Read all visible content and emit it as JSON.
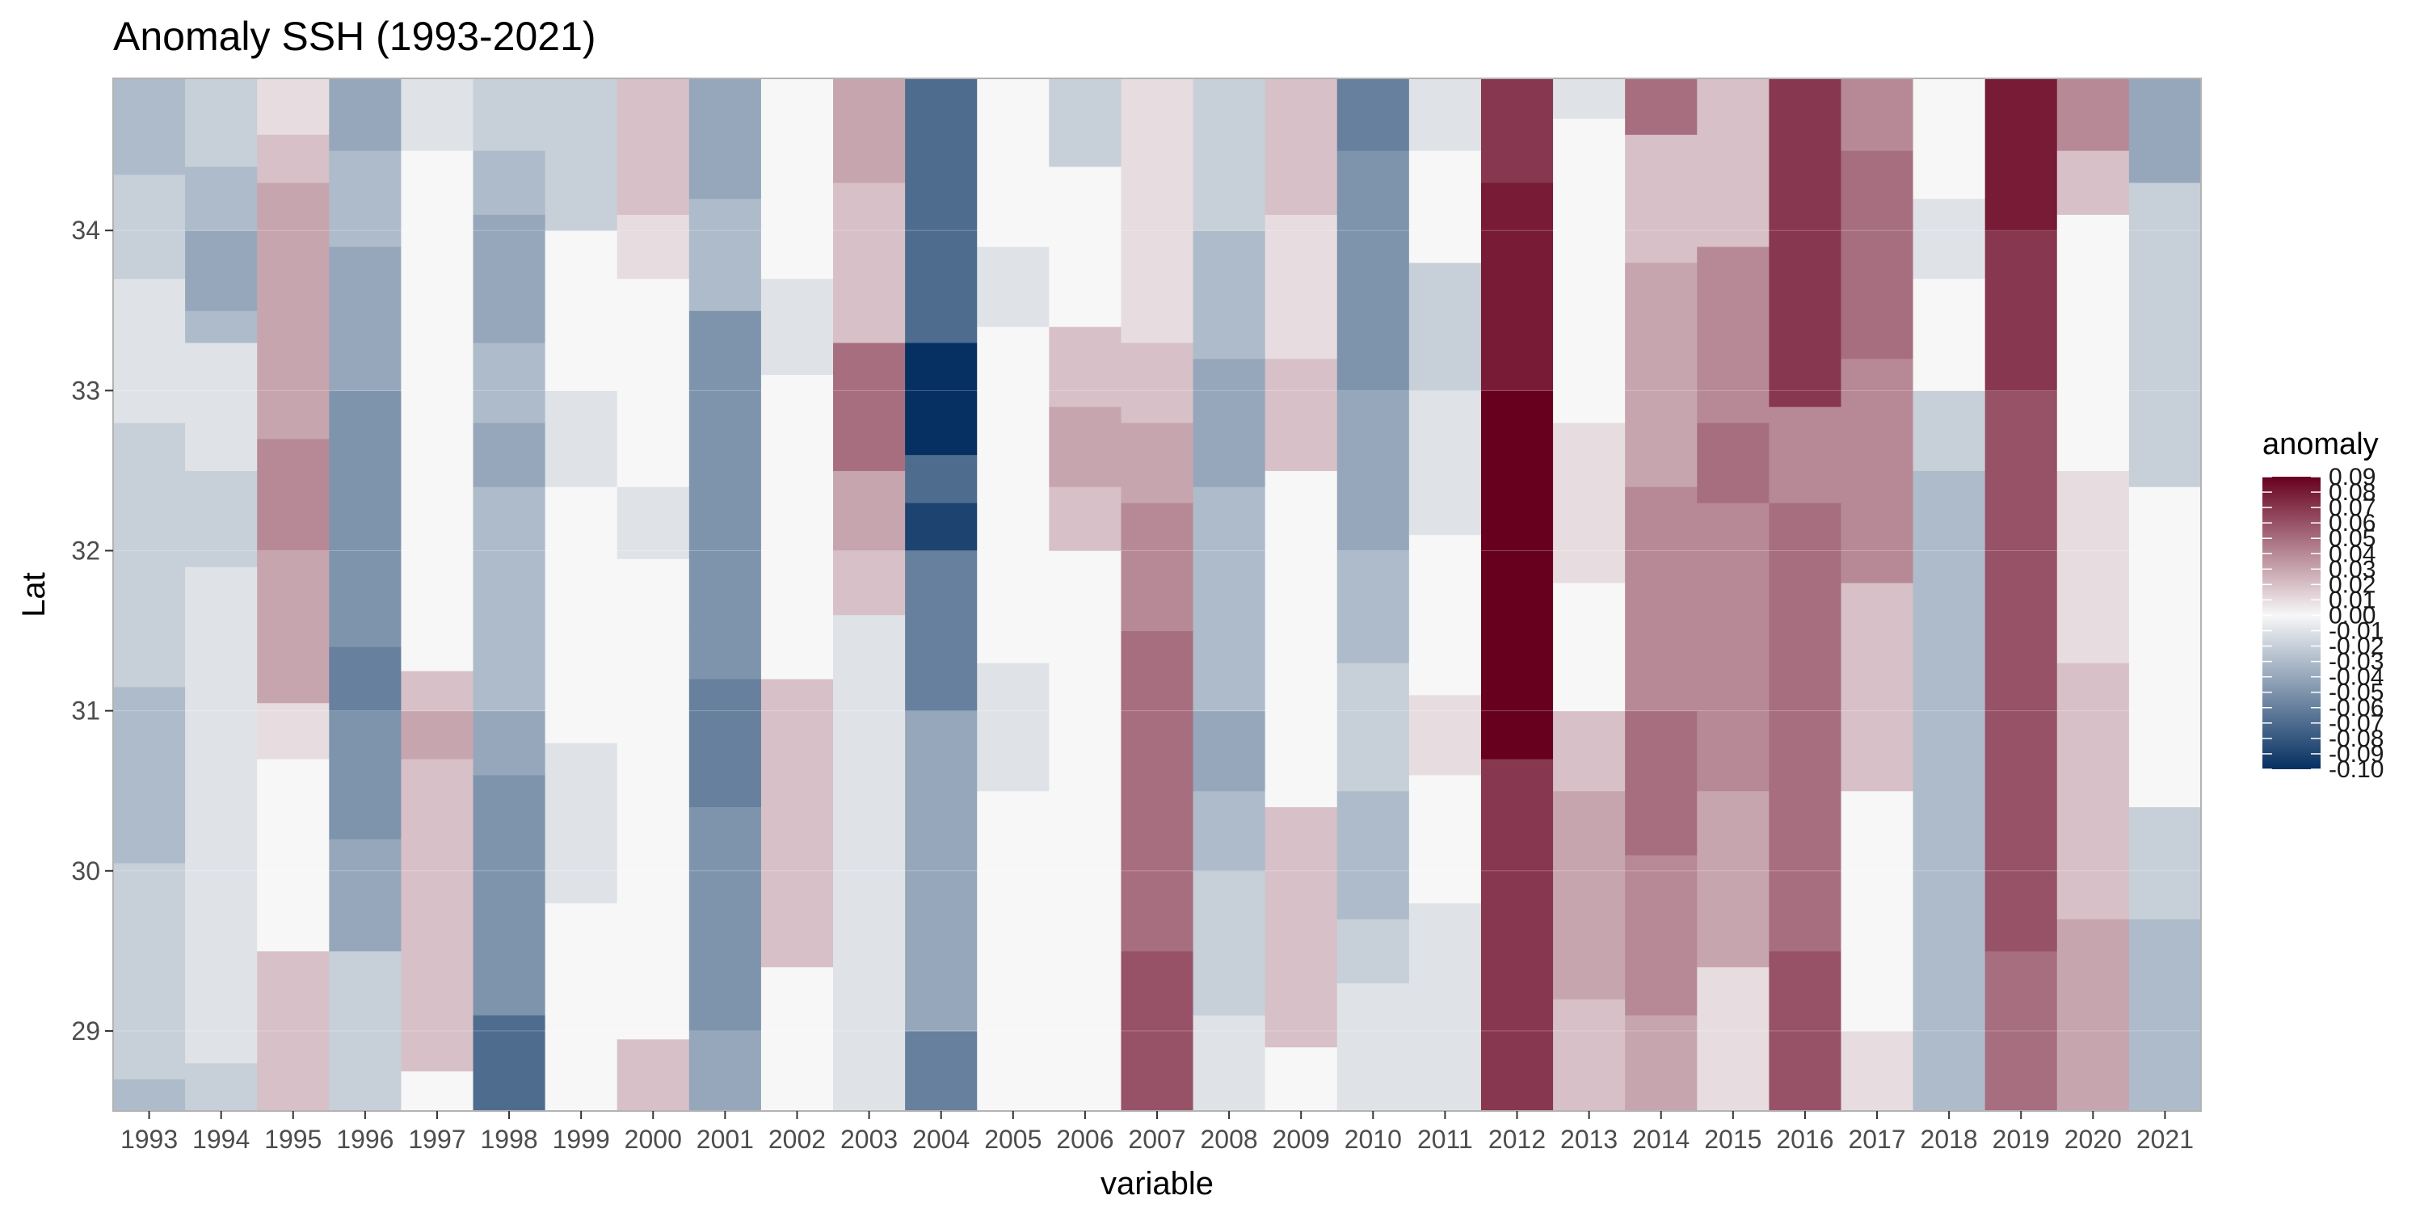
{
  "chart_data": {
    "type": "heatmap",
    "title": "Anomaly SSH (1993-2021)",
    "xlabel": "variable",
    "ylabel": "Lat",
    "ylim": [
      28.5,
      34.95
    ],
    "x_ticks": [
      "1993",
      "1994",
      "1995",
      "1996",
      "1997",
      "1998",
      "1999",
      "2000",
      "2001",
      "2002",
      "2003",
      "2004",
      "2005",
      "2006",
      "2007",
      "2008",
      "2009",
      "2010",
      "2011",
      "2012",
      "2013",
      "2014",
      "2015",
      "2016",
      "2017",
      "2018",
      "2019",
      "2020",
      "2021"
    ],
    "y_ticks": [
      29,
      30,
      31,
      32,
      33,
      34
    ],
    "y_tick_labels": [
      "29",
      "30",
      "31",
      "32",
      "33",
      "34"
    ],
    "grid": true,
    "legend_position": "right",
    "legend": {
      "title": "anomaly",
      "labels": [
        "0.09",
        "0.08",
        "0.07",
        "0.06",
        "0.05",
        "0.04",
        "0.03",
        "0.02",
        "0.01",
        "0.00",
        "-0.01",
        "-0.02",
        "-0.03",
        "-0.04",
        "-0.05",
        "-0.06",
        "-0.07",
        "-0.08",
        "-0.09",
        "-0.10"
      ]
    },
    "color_scale": {
      "low": "#053061",
      "mid": "#f7f7f7",
      "high": "#67001f",
      "min": -0.1,
      "max": 0.09
    },
    "cells": {
      "1993": [
        [
          28.5,
          28.7,
          -0.03
        ],
        [
          28.7,
          30.05,
          -0.02
        ],
        [
          30.05,
          31.15,
          -0.03
        ],
        [
          31.15,
          32.8,
          -0.02
        ],
        [
          32.8,
          33.7,
          -0.01
        ],
        [
          33.7,
          34.35,
          -0.02
        ],
        [
          34.35,
          34.95,
          -0.03
        ]
      ],
      "1994": [
        [
          28.5,
          28.8,
          -0.02
        ],
        [
          28.8,
          31.9,
          -0.01
        ],
        [
          31.9,
          32.5,
          -0.02
        ],
        [
          32.5,
          33.3,
          -0.01
        ],
        [
          33.3,
          33.5,
          -0.03
        ],
        [
          33.5,
          34.0,
          -0.04
        ],
        [
          34.0,
          34.4,
          -0.03
        ],
        [
          34.4,
          34.95,
          -0.02
        ]
      ],
      "1995": [
        [
          28.5,
          29.5,
          0.02
        ],
        [
          29.5,
          30.7,
          0.0
        ],
        [
          30.7,
          31.05,
          0.01
        ],
        [
          31.05,
          32.0,
          0.03
        ],
        [
          32.0,
          32.7,
          0.04
        ],
        [
          32.7,
          34.3,
          0.03
        ],
        [
          34.3,
          34.6,
          0.02
        ],
        [
          34.6,
          34.95,
          0.01
        ]
      ],
      "1996": [
        [
          28.5,
          29.5,
          -0.02
        ],
        [
          29.5,
          30.2,
          -0.04
        ],
        [
          30.2,
          31.0,
          -0.05
        ],
        [
          31.0,
          31.4,
          -0.06
        ],
        [
          31.4,
          33.0,
          -0.05
        ],
        [
          33.0,
          33.9,
          -0.04
        ],
        [
          33.9,
          34.5,
          -0.03
        ],
        [
          34.5,
          34.95,
          -0.04
        ]
      ],
      "1997": [
        [
          28.5,
          28.75,
          0.0
        ],
        [
          28.75,
          30.7,
          0.02
        ],
        [
          30.7,
          31.0,
          0.03
        ],
        [
          31.0,
          31.25,
          0.02
        ],
        [
          31.25,
          34.5,
          0.0
        ],
        [
          34.5,
          34.95,
          -0.01
        ]
      ],
      "1998": [
        [
          28.5,
          29.1,
          -0.07
        ],
        [
          29.1,
          30.6,
          -0.05
        ],
        [
          30.6,
          31.0,
          -0.04
        ],
        [
          31.0,
          32.4,
          -0.03
        ],
        [
          32.4,
          32.8,
          -0.04
        ],
        [
          32.8,
          33.3,
          -0.03
        ],
        [
          33.3,
          34.1,
          -0.04
        ],
        [
          34.1,
          34.5,
          -0.03
        ],
        [
          34.5,
          34.95,
          -0.02
        ]
      ],
      "1999": [
        [
          28.5,
          29.8,
          0.0
        ],
        [
          29.8,
          30.8,
          -0.01
        ],
        [
          30.8,
          32.4,
          0.0
        ],
        [
          32.4,
          33.0,
          -0.01
        ],
        [
          33.0,
          34.0,
          0.0
        ],
        [
          34.0,
          34.95,
          -0.02
        ]
      ],
      "2000": [
        [
          28.5,
          28.95,
          0.02
        ],
        [
          28.95,
          31.95,
          0.0
        ],
        [
          31.95,
          32.4,
          -0.01
        ],
        [
          32.4,
          33.7,
          0.0
        ],
        [
          33.7,
          34.1,
          0.01
        ],
        [
          34.1,
          34.95,
          0.02
        ]
      ],
      "2001": [
        [
          28.5,
          29.0,
          -0.04
        ],
        [
          29.0,
          30.4,
          -0.05
        ],
        [
          30.4,
          31.2,
          -0.06
        ],
        [
          31.2,
          31.5,
          -0.05
        ],
        [
          31.5,
          33.5,
          -0.05
        ],
        [
          33.5,
          34.2,
          -0.03
        ],
        [
          34.2,
          34.95,
          -0.04
        ]
      ],
      "2002": [
        [
          28.5,
          29.4,
          0.0
        ],
        [
          29.4,
          31.2,
          0.02
        ],
        [
          31.2,
          33.1,
          0.0
        ],
        [
          33.1,
          33.7,
          -0.01
        ],
        [
          33.7,
          34.95,
          0.0
        ]
      ],
      "2003": [
        [
          28.5,
          31.6,
          -0.01
        ],
        [
          31.6,
          32.0,
          0.02
        ],
        [
          32.0,
          32.5,
          0.03
        ],
        [
          32.5,
          33.3,
          0.05
        ],
        [
          33.3,
          34.3,
          0.02
        ],
        [
          34.3,
          34.95,
          0.03
        ]
      ],
      "2004": [
        [
          28.5,
          29.0,
          -0.06
        ],
        [
          29.0,
          31.0,
          -0.04
        ],
        [
          31.0,
          32.0,
          -0.06
        ],
        [
          32.0,
          32.3,
          -0.09
        ],
        [
          32.3,
          32.6,
          -0.07
        ],
        [
          32.6,
          33.3,
          -0.1
        ],
        [
          33.3,
          34.95,
          -0.07
        ]
      ],
      "2005": [
        [
          28.5,
          30.5,
          0.0
        ],
        [
          30.5,
          31.3,
          -0.01
        ],
        [
          31.3,
          33.4,
          0.0
        ],
        [
          33.4,
          33.9,
          -0.01
        ],
        [
          33.9,
          34.95,
          0.0
        ]
      ],
      "2006": [
        [
          28.5,
          32.0,
          0.0
        ],
        [
          32.0,
          32.4,
          0.02
        ],
        [
          32.4,
          32.9,
          0.03
        ],
        [
          32.9,
          33.4,
          0.02
        ],
        [
          33.4,
          34.4,
          0.0
        ],
        [
          34.4,
          34.95,
          -0.02
        ]
      ],
      "2007": [
        [
          28.5,
          29.5,
          0.06
        ],
        [
          29.5,
          31.5,
          0.05
        ],
        [
          31.5,
          32.3,
          0.04
        ],
        [
          32.3,
          32.8,
          0.03
        ],
        [
          32.8,
          33.3,
          0.02
        ],
        [
          33.3,
          34.95,
          0.01
        ]
      ],
      "2008": [
        [
          28.5,
          29.1,
          -0.01
        ],
        [
          29.1,
          30.0,
          -0.02
        ],
        [
          30.0,
          30.5,
          -0.03
        ],
        [
          30.5,
          31.0,
          -0.04
        ],
        [
          31.0,
          32.4,
          -0.03
        ],
        [
          32.4,
          33.2,
          -0.04
        ],
        [
          33.2,
          34.0,
          -0.03
        ],
        [
          34.0,
          34.95,
          -0.02
        ]
      ],
      "2009": [
        [
          28.5,
          28.9,
          0.0
        ],
        [
          28.9,
          30.4,
          0.02
        ],
        [
          30.4,
          32.5,
          0.0
        ],
        [
          32.5,
          33.2,
          0.02
        ],
        [
          33.2,
          34.1,
          0.01
        ],
        [
          34.1,
          34.95,
          0.02
        ]
      ],
      "2010": [
        [
          28.5,
          29.3,
          -0.01
        ],
        [
          29.3,
          29.7,
          -0.02
        ],
        [
          29.7,
          30.5,
          -0.03
        ],
        [
          30.5,
          31.3,
          -0.02
        ],
        [
          31.3,
          32.0,
          -0.03
        ],
        [
          32.0,
          33.0,
          -0.04
        ],
        [
          33.0,
          33.5,
          -0.05
        ],
        [
          33.5,
          34.5,
          -0.05
        ],
        [
          34.5,
          34.95,
          -0.06
        ]
      ],
      "2011": [
        [
          28.5,
          29.8,
          -0.01
        ],
        [
          29.8,
          30.6,
          0.0
        ],
        [
          30.6,
          31.1,
          0.01
        ],
        [
          31.1,
          32.1,
          0.0
        ],
        [
          32.1,
          33.0,
          -0.01
        ],
        [
          33.0,
          33.8,
          -0.02
        ],
        [
          33.8,
          34.5,
          0.0
        ],
        [
          34.5,
          34.95,
          -0.01
        ]
      ],
      "2012": [
        [
          28.5,
          30.7,
          0.07
        ],
        [
          30.7,
          33.0,
          0.09
        ],
        [
          33.0,
          34.3,
          0.08
        ],
        [
          34.3,
          34.95,
          0.07
        ]
      ],
      "2013": [
        [
          28.5,
          29.2,
          0.02
        ],
        [
          29.2,
          30.5,
          0.03
        ],
        [
          30.5,
          31.0,
          0.02
        ],
        [
          31.0,
          31.8,
          0.0
        ],
        [
          31.8,
          32.8,
          0.01
        ],
        [
          32.8,
          34.7,
          0.0
        ],
        [
          34.7,
          34.95,
          -0.01
        ]
      ],
      "2014": [
        [
          28.5,
          29.1,
          0.03
        ],
        [
          29.1,
          30.1,
          0.04
        ],
        [
          30.1,
          31.0,
          0.05
        ],
        [
          31.0,
          32.4,
          0.04
        ],
        [
          32.4,
          33.8,
          0.03
        ],
        [
          33.8,
          34.6,
          0.02
        ],
        [
          34.6,
          34.95,
          0.05
        ]
      ],
      "2015": [
        [
          28.5,
          29.4,
          0.01
        ],
        [
          29.4,
          30.5,
          0.03
        ],
        [
          30.5,
          32.3,
          0.04
        ],
        [
          32.3,
          32.8,
          0.05
        ],
        [
          32.8,
          33.9,
          0.04
        ],
        [
          33.9,
          34.95,
          0.02
        ]
      ],
      "2016": [
        [
          28.5,
          29.5,
          0.06
        ],
        [
          29.5,
          32.3,
          0.05
        ],
        [
          32.3,
          32.9,
          0.04
        ],
        [
          32.9,
          34.95,
          0.07
        ]
      ],
      "2017": [
        [
          28.5,
          29.0,
          0.01
        ],
        [
          29.0,
          30.5,
          0.0
        ],
        [
          30.5,
          31.8,
          0.02
        ],
        [
          31.8,
          33.2,
          0.04
        ],
        [
          33.2,
          34.5,
          0.05
        ],
        [
          34.5,
          34.95,
          0.04
        ]
      ],
      "2018": [
        [
          28.5,
          30.0,
          -0.03
        ],
        [
          30.0,
          32.5,
          -0.03
        ],
        [
          32.5,
          33.0,
          -0.02
        ],
        [
          33.0,
          33.7,
          0.0
        ],
        [
          33.7,
          34.2,
          -0.01
        ],
        [
          34.2,
          34.95,
          0.0
        ]
      ],
      "2019": [
        [
          28.5,
          29.5,
          0.05
        ],
        [
          29.5,
          31.0,
          0.06
        ],
        [
          31.0,
          33.0,
          0.06
        ],
        [
          33.0,
          34.0,
          0.07
        ],
        [
          34.0,
          34.95,
          0.08
        ]
      ],
      "2020": [
        [
          28.5,
          29.7,
          0.03
        ],
        [
          29.7,
          30.5,
          0.02
        ],
        [
          30.5,
          31.3,
          0.02
        ],
        [
          31.3,
          32.5,
          0.01
        ],
        [
          32.5,
          34.1,
          0.0
        ],
        [
          34.1,
          34.5,
          0.02
        ],
        [
          34.5,
          34.95,
          0.04
        ]
      ],
      "2021": [
        [
          28.5,
          29.7,
          -0.03
        ],
        [
          29.7,
          30.4,
          -0.02
        ],
        [
          30.4,
          32.4,
          0.0
        ],
        [
          32.4,
          33.4,
          -0.02
        ],
        [
          33.4,
          34.3,
          -0.02
        ],
        [
          34.3,
          34.95,
          -0.04
        ]
      ]
    }
  }
}
